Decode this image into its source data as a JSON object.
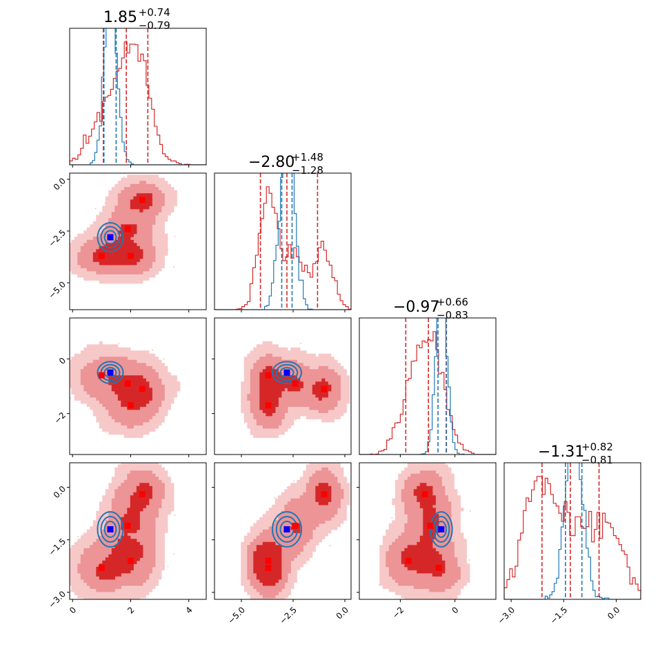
{
  "chart_data": {
    "type": "corner",
    "colors": {
      "red": "#d62728",
      "red_fill_1": "#f7c8c8",
      "red_fill_2": "#ec9496",
      "red_fill_3": "#d62728",
      "blue": "#1f77b4",
      "marker_red": "#ff0000",
      "marker_blue": "#0000ff",
      "scatter_points": "#f2b6b6"
    },
    "parameters": [
      {
        "range": [
          -0.1,
          4.6
        ],
        "ticks": [
          {
            "v": 0,
            "label": "0"
          },
          {
            "v": 2,
            "label": "2"
          },
          {
            "v": 4,
            "label": "4"
          }
        ],
        "title": {
          "value": "1.85",
          "plus": "+0.74",
          "minus": "−0.79"
        }
      },
      {
        "range": [
          -6.3,
          0.3
        ],
        "ticks": [
          {
            "v": -5,
            "label": "−5.0"
          },
          {
            "v": -2.5,
            "label": "−2.5"
          },
          {
            "v": 0,
            "label": "0.0"
          }
        ],
        "title": {
          "value": "−2.80",
          "plus": "+1.48",
          "minus": "−1.28"
        }
      },
      {
        "range": [
          -3.5,
          1.5
        ],
        "ticks": [
          {
            "v": -2,
            "label": "−2"
          },
          {
            "v": 0,
            "label": "0"
          }
        ],
        "title": {
          "value": "−0.97",
          "plus": "+0.66",
          "minus": "−0.83"
        }
      },
      {
        "range": [
          -3.2,
          0.7
        ],
        "ticks": [
          {
            "v": -3,
            "label": "−3.0"
          },
          {
            "v": -1.5,
            "label": "−1.5"
          },
          {
            "v": 0,
            "label": "0.0"
          }
        ],
        "title": {
          "value": "−1.31",
          "plus": "+0.82",
          "minus": "−0.81"
        }
      }
    ],
    "red_samples": {
      "modes": [
        {
          "mean": [
            2.4,
            -1.0,
            -1.1,
            -0.2
          ],
          "sd": 0.45,
          "weight": 1
        },
        {
          "mean": [
            1.0,
            -3.7,
            -0.6,
            -2.3
          ],
          "sd": 0.45,
          "weight": 1
        },
        {
          "mean": [
            1.9,
            -2.4,
            -0.9,
            -1.1
          ],
          "sd": 0.45,
          "weight": 1
        },
        {
          "mean": [
            2.0,
            -3.7,
            -1.7,
            -2.1
          ],
          "sd": 0.45,
          "weight": 1
        }
      ],
      "quantiles": [
        [
          1.06,
          1.85,
          2.59
        ],
        [
          -4.08,
          -2.8,
          -1.32
        ],
        [
          -1.8,
          -0.97,
          -0.31
        ],
        [
          -2.12,
          -1.31,
          -0.49
        ]
      ]
    },
    "blue_samples": {
      "mean": [
        1.3,
        -2.8,
        -0.5,
        -1.2
      ],
      "sd": [
        0.22,
        0.35,
        0.2,
        0.25
      ],
      "quantiles": [
        [
          1.08,
          1.5,
          null
        ],
        [
          -3.05,
          -2.55,
          null
        ],
        [
          -0.62,
          -0.32,
          null
        ],
        [
          -1.45,
          -0.98,
          null
        ]
      ]
    },
    "markers": {
      "red": [
        [
          2.4,
          -1.0,
          -1.1,
          -0.2
        ],
        [
          1.0,
          -3.7,
          -0.6,
          -2.3
        ],
        [
          1.9,
          -2.4,
          -0.9,
          -1.1
        ],
        [
          2.0,
          -3.7,
          -1.7,
          -2.1
        ]
      ],
      "blue": [
        1.3,
        -2.8,
        -0.5,
        -1.2
      ]
    }
  }
}
